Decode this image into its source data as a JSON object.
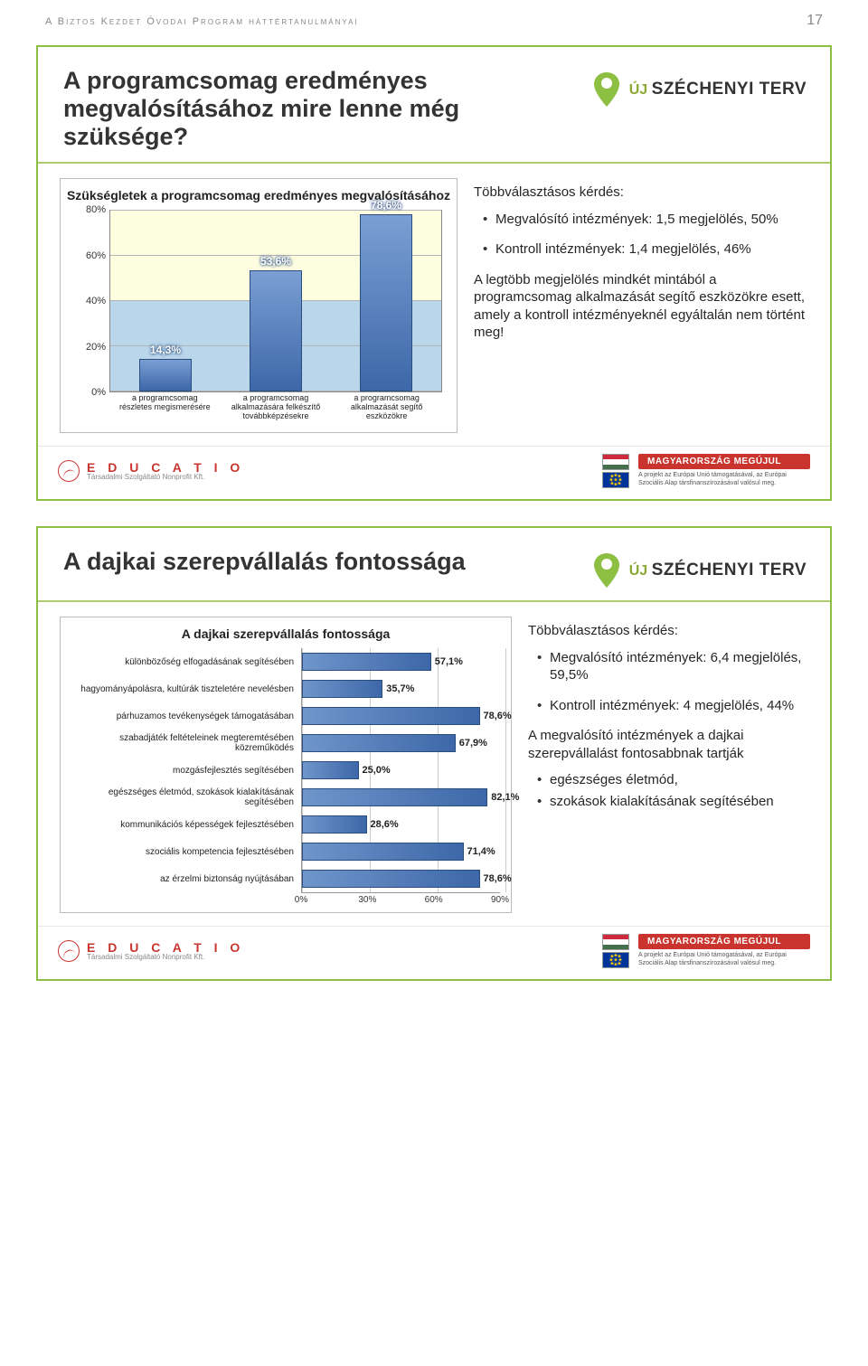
{
  "header": {
    "running_head": "A Biztos Kezdet Óvodai Program háttértanulmányai",
    "page_number": "17"
  },
  "szechenyi": {
    "uj": "ÚJ",
    "terv": "SZÉCHENYI TERV",
    "pin_color": "#8dbf42"
  },
  "slide1": {
    "title": "A programcsomag eredményes megvalósításához mire lenne még szüksége?",
    "chart": {
      "type": "bar",
      "title": "Szükségletek a programcsomag eredményes megvalósításához",
      "yticks": [
        "0%",
        "20%",
        "40%",
        "60%",
        "80%"
      ],
      "ymax": 80,
      "bars": [
        {
          "label": "a programcsomag részletes megismerésére",
          "value": 14.3,
          "text": "14,3%"
        },
        {
          "label": "a programcsomag alkalmazására felkészítő továbbképzésekre",
          "value": 53.6,
          "text": "53,6%"
        },
        {
          "label": "a programcsomag alkalmazását segítő eszközökre",
          "value": 78.6,
          "text": "78,6%"
        }
      ],
      "bar_color_top": "#7a9fd4",
      "bar_color_bottom": "#3d67a8",
      "bg_top": "#fdfde0",
      "bg_bottom": "#b9d6ea"
    },
    "right": {
      "heading": "Többválasztásos kérdés:",
      "bullets": [
        "Megvalósító intézmények: 1,5 megjelölés, 50%",
        "Kontroll intézmények: 1,4 megjelölés, 46%"
      ],
      "para": "A legtöbb megjelölés mindkét mintából a programcsomag alkalmazását segítő eszközökre esett, amely a kontroll intézményeknél egyáltalán nem történt meg!"
    }
  },
  "slide2": {
    "title": "A dajkai szerepvállalás fontossága",
    "chart": {
      "type": "hbar",
      "title": "A dajkai szerepvállalás fontossága",
      "xmax": 90,
      "xticks": [
        "0%",
        "30%",
        "60%",
        "90%"
      ],
      "rows": [
        {
          "label": "különbözőség elfogadásának segítésében",
          "value": 57.1,
          "text": "57,1%"
        },
        {
          "label": "hagyományápolásra, kultúrák tiszteletére nevelésben",
          "value": 35.7,
          "text": "35,7%"
        },
        {
          "label": "párhuzamos tevékenységek támogatásában",
          "value": 78.6,
          "text": "78,6%"
        },
        {
          "label": "szabadjáték feltételeinek megteremtésében közreműködés",
          "value": 67.9,
          "text": "67,9%"
        },
        {
          "label": "mozgásfejlesztés segítésében",
          "value": 25.0,
          "text": "25,0%"
        },
        {
          "label": "egészséges életmód, szokások kialakításának segítésében",
          "value": 82.1,
          "text": "82,1%"
        },
        {
          "label": "kommunikációs képességek fejlesztésében",
          "value": 28.6,
          "text": "28,6%"
        },
        {
          "label": "szociális kompetencia fejlesztésében",
          "value": 71.4,
          "text": "71,4%"
        },
        {
          "label": "az érzelmi biztonság nyújtásában",
          "value": 78.6,
          "text": "78,6%"
        }
      ],
      "bar_color_left": "#6f96cb",
      "bar_color_right": "#3d67a8"
    },
    "right": {
      "heading": "Többválasztásos kérdés:",
      "bullets": [
        "Megvalósító intézmények: 6,4 megjelölés, 59,5%",
        "Kontroll intézmények: 4 megjelölés, 44%"
      ],
      "para_intro": "A megvalósító intézmények a dajkai szerepvállalást fontosabbnak tartják",
      "sub_bullets": [
        "egészséges életmód,",
        "szokások kialakításának segítésében"
      ]
    }
  },
  "footer": {
    "educatio": {
      "name": "E D U C A T I O",
      "sub": "Társadalmi Szolgáltató Nonprofit Kft."
    },
    "megujul": {
      "banner": "MAGYARORSZÁG MEGÚJUL",
      "small": "A projekt az Európai Unió támogatásával, az Európai Szociális Alap társfinanszírozásával valósul meg."
    },
    "hu_colors": [
      "#cd2a3e",
      "#ffffff",
      "#436f4d"
    ]
  },
  "colors": {
    "frame": "#8dbf42",
    "accent_red": "#c9352e"
  }
}
